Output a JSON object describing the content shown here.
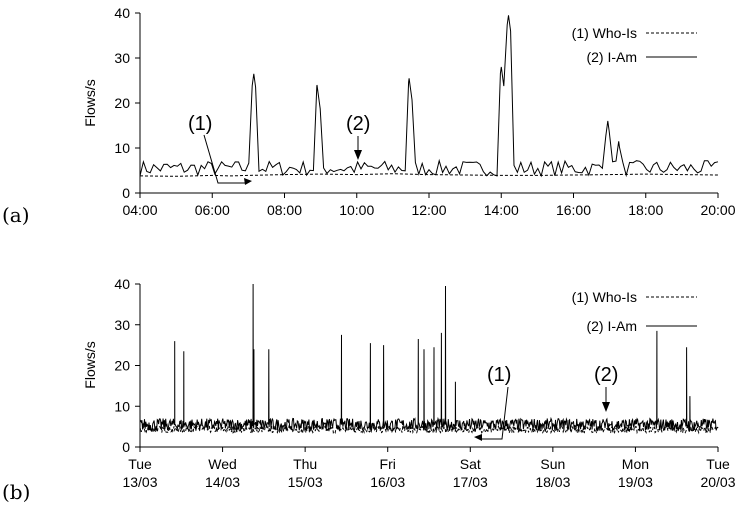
{
  "chart_data": [
    {
      "type": "line",
      "panel_label": "(a)",
      "ylabel": "Flows/s",
      "xlabel": "",
      "ylim": [
        0,
        40
      ],
      "yticks": [
        "0",
        "10",
        "20",
        "30",
        "40"
      ],
      "xlim_hours": [
        4,
        20
      ],
      "xticks": [
        "04:00",
        "06:00",
        "08:00",
        "10:00",
        "12:00",
        "14:00",
        "16:00",
        "18:00",
        "20:00"
      ],
      "grid": false,
      "legend_position": "top-right",
      "series": [
        {
          "name": "(1) Who-Is",
          "style": "dashed",
          "x_hours": [
            4,
            5,
            6,
            6.5,
            7,
            8,
            9,
            10,
            11,
            12,
            13,
            14,
            15,
            16,
            17,
            18,
            19,
            20
          ],
          "y": [
            3.8,
            3.7,
            3.9,
            3.8,
            3.9,
            4.1,
            4.2,
            4.1,
            4.3,
            4.1,
            4.0,
            3.9,
            3.9,
            4.0,
            4.1,
            4.2,
            4.1,
            4.0
          ]
        },
        {
          "name": "(2) I-Am",
          "style": "solid",
          "baseline": 5.5,
          "peaks": [
            {
              "x_hours": 7.15,
              "y": 26.5
            },
            {
              "x_hours": 8.9,
              "y": 24.0
            },
            {
              "x_hours": 11.45,
              "y": 25.5
            },
            {
              "x_hours": 14.0,
              "y": 28.0
            },
            {
              "x_hours": 14.2,
              "y": 39.5
            },
            {
              "x_hours": 16.95,
              "y": 16.0
            },
            {
              "x_hours": 17.25,
              "y": 11.5
            }
          ]
        }
      ],
      "annotations": [
        {
          "text": "(1)",
          "target_series": "(1) Who-Is",
          "at_x_hours": 6.8,
          "at_y": 2.0
        },
        {
          "text": "(2)",
          "target_series": "(2) I-Am",
          "at_x_hours": 10.1,
          "at_y": 7.5
        }
      ]
    },
    {
      "type": "line",
      "panel_label": "(b)",
      "ylabel": "Flows/s",
      "xlabel": "",
      "ylim": [
        0,
        40
      ],
      "yticks": [
        "0",
        "10",
        "20",
        "30",
        "40"
      ],
      "xlim_days": [
        0,
        7
      ],
      "xticks": [
        {
          "day": "Tue",
          "date": "13/03"
        },
        {
          "day": "Wed",
          "date": "14/03"
        },
        {
          "day": "Thu",
          "date": "15/03"
        },
        {
          "day": "Fri",
          "date": "16/03"
        },
        {
          "day": "Sat",
          "date": "17/03"
        },
        {
          "day": "Sun",
          "date": "18/03"
        },
        {
          "day": "Mon",
          "date": "19/03"
        },
        {
          "day": "Tue",
          "date": "20/03"
        }
      ],
      "grid": false,
      "legend_position": "top-right",
      "series": [
        {
          "name": "(1) Who-Is",
          "style": "dashed",
          "baseline": 4.3
        },
        {
          "name": "(2) I-Am",
          "style": "solid",
          "baseline": 5.5,
          "peaks": [
            {
              "x_days": 0.42,
              "y": 26.0
            },
            {
              "x_days": 0.53,
              "y": 23.5
            },
            {
              "x_days": 1.37,
              "y": 40.0
            },
            {
              "x_days": 1.38,
              "y": 24.0
            },
            {
              "x_days": 1.56,
              "y": 24.0
            },
            {
              "x_days": 2.44,
              "y": 27.5
            },
            {
              "x_days": 2.79,
              "y": 25.5
            },
            {
              "x_days": 2.95,
              "y": 25.0
            },
            {
              "x_days": 3.37,
              "y": 26.5
            },
            {
              "x_days": 3.44,
              "y": 24.0
            },
            {
              "x_days": 3.56,
              "y": 24.5
            },
            {
              "x_days": 3.65,
              "y": 28.0
            },
            {
              "x_days": 3.7,
              "y": 39.5
            },
            {
              "x_days": 3.82,
              "y": 16.0
            },
            {
              "x_days": 6.26,
              "y": 28.5
            },
            {
              "x_days": 6.62,
              "y": 24.5
            },
            {
              "x_days": 6.66,
              "y": 12.5
            }
          ]
        }
      ],
      "annotations": [
        {
          "text": "(1)",
          "target_series": "(1) Who-Is",
          "at_x_days": 4.12,
          "at_y": 1.5
        },
        {
          "text": "(2)",
          "target_series": "(2) I-Am",
          "at_x_days": 5.66,
          "at_y": 8.0
        }
      ]
    }
  ]
}
